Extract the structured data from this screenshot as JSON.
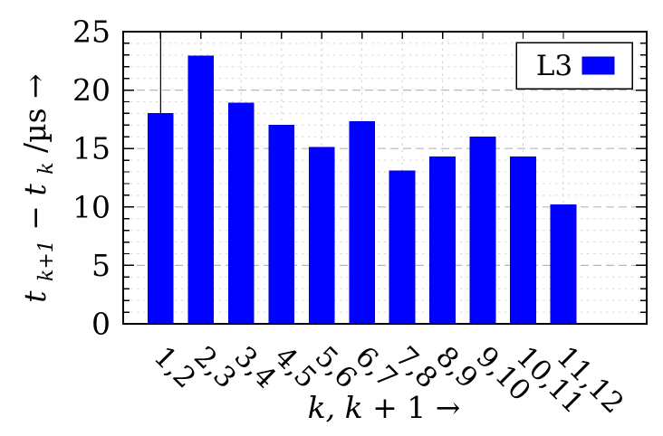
{
  "chart_data": {
    "type": "bar",
    "title": "",
    "categories": [
      "1,2",
      "2,3",
      "3,4",
      "4,5",
      "5,6",
      "6,7",
      "7,8",
      "8,9",
      "9,10",
      "10,11",
      "11,12"
    ],
    "series": [
      {
        "name": "L3",
        "values": [
          18.0,
          22.9,
          18.9,
          17.0,
          15.1,
          17.3,
          13.1,
          14.3,
          16.0,
          14.3,
          10.2
        ]
      }
    ],
    "xlabel": "k, k + 1 →",
    "xlabel_parts": [
      {
        "text": "k, k",
        "style": "italic"
      },
      {
        "text": " + 1 ",
        "style": "normal"
      },
      {
        "text": "→",
        "style": "normal"
      }
    ],
    "ylabel": "t_{k+1} − t_k/µs →",
    "ylabel_parts": [
      {
        "text": "t",
        "style": "italic"
      },
      {
        "text": "k+1",
        "style": "italic-subscript"
      },
      {
        "text": " − ",
        "style": "normal"
      },
      {
        "text": "t",
        "style": "italic"
      },
      {
        "text": "k",
        "style": "italic-subscript"
      },
      {
        "text": "/µs ",
        "style": "normal"
      },
      {
        "text": "→",
        "style": "normal"
      }
    ],
    "ylim": [
      0,
      25
    ],
    "yticks": [
      0,
      5,
      10,
      15,
      20,
      25
    ],
    "ytick_labels": [
      "0",
      "5",
      "10",
      "15",
      "20",
      "25"
    ],
    "yminor_step": 1,
    "grid": "both",
    "legend": {
      "label": "L3",
      "position": "top-right"
    },
    "annotation_line": {
      "at_category": "1,2",
      "from_value": 25,
      "to_value": 18.0
    },
    "colors": {
      "bar_fill": "#0000ff",
      "bar_edge": "#0000d8",
      "axis": "#000000",
      "grid_major": "#b8b8b8",
      "grid_minor": "#d8d8d8",
      "grid_vertical": "#d0d0d0",
      "legend_background": "#ffffff"
    }
  }
}
